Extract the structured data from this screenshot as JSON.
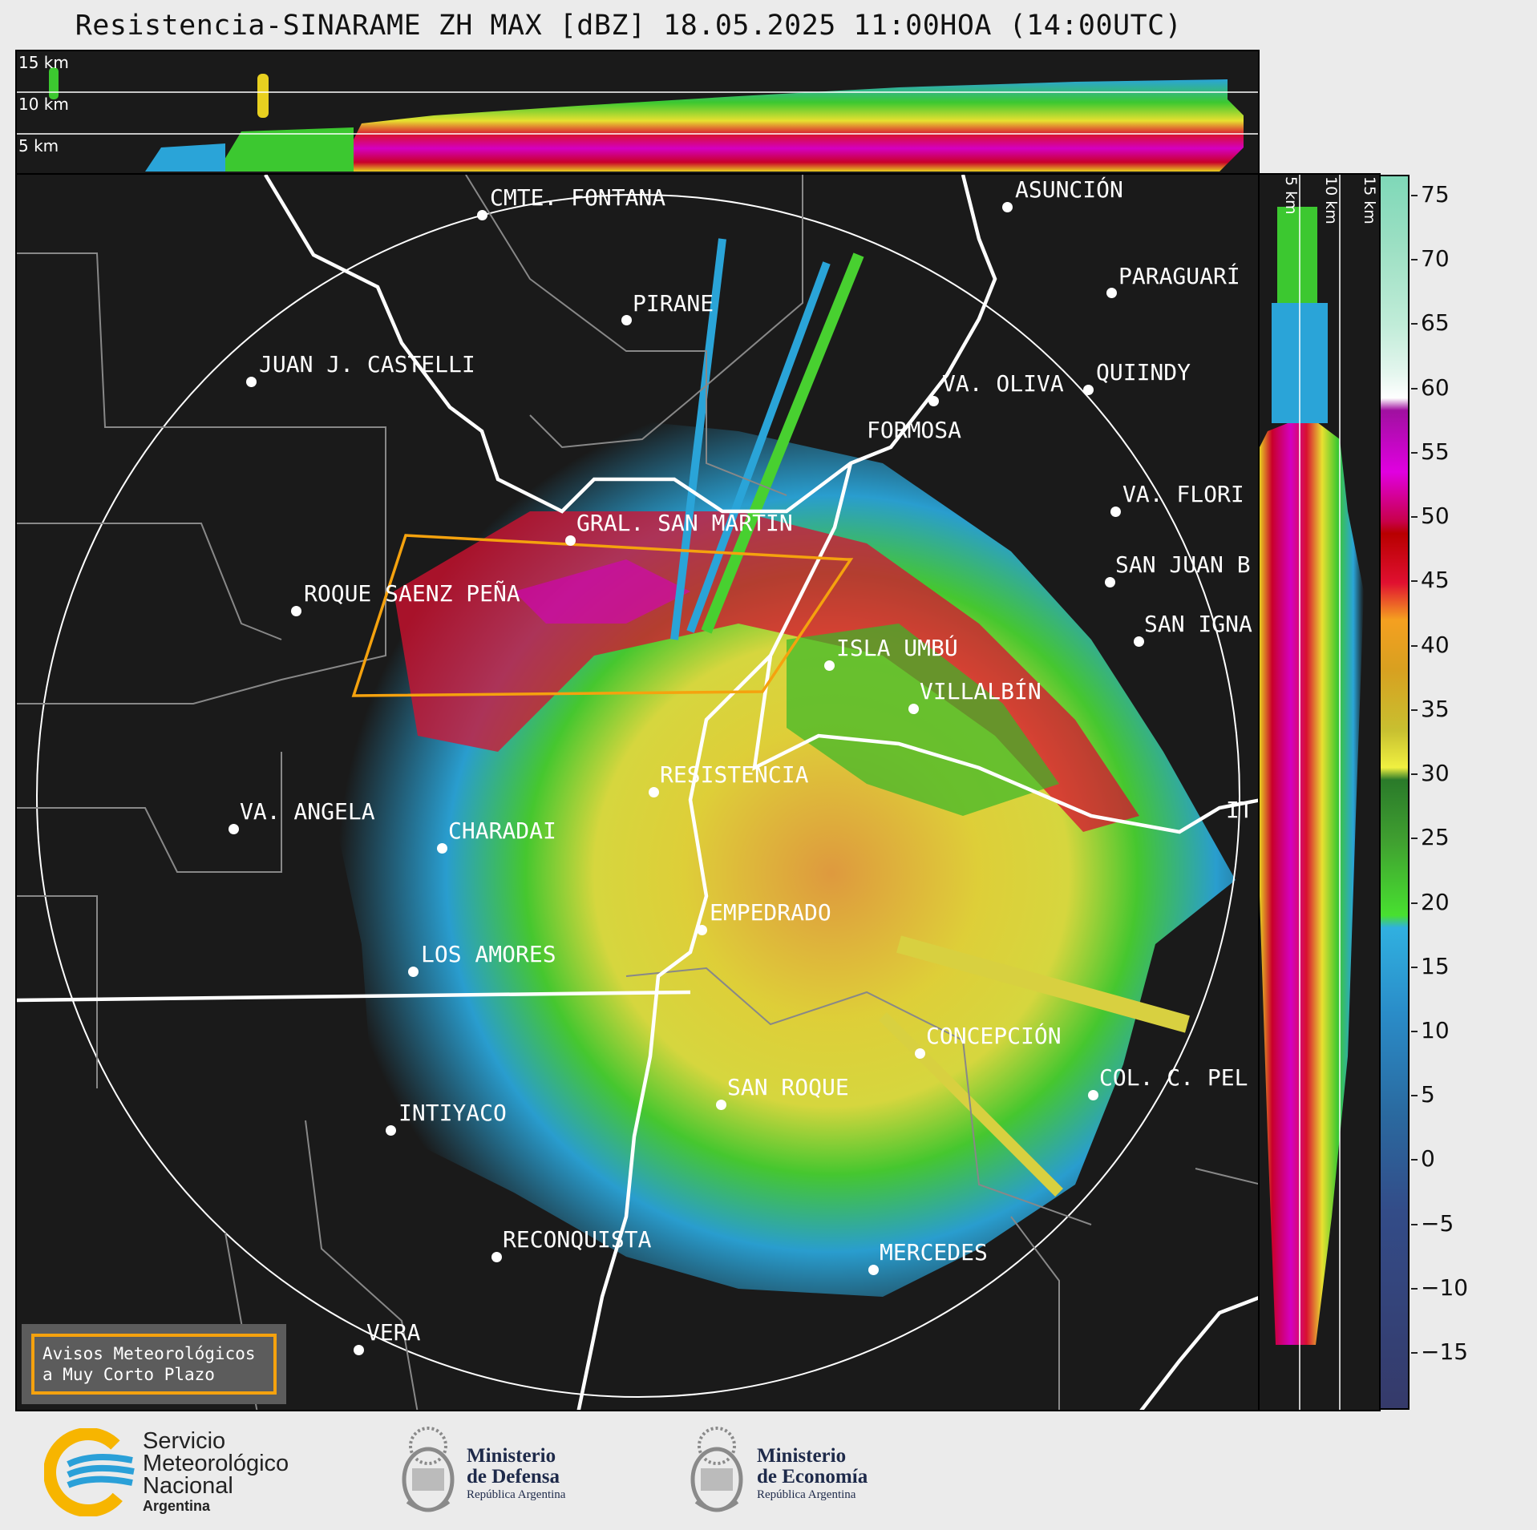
{
  "title": "Resistencia-SINARAME ZH MAX [dBZ] 18.05.2025 11:00HOA (14:00UTC)",
  "top_xsec": {
    "labels": [
      "15 km",
      "10 km",
      "5 km"
    ]
  },
  "side_xsec": {
    "labels": [
      "5 km",
      "10 km",
      "15 km"
    ]
  },
  "colorbar": {
    "ticks": [
      "75",
      "70",
      "65",
      "60",
      "55",
      "50",
      "45",
      "40",
      "35",
      "30",
      "25",
      "20",
      "15",
      "10",
      "5",
      "0",
      "−5",
      "−10",
      "−15"
    ]
  },
  "cities": [
    {
      "name": "CMTE. FONTANA"
    },
    {
      "name": "ASUNCIÓN"
    },
    {
      "name": "PARAGUARÍ"
    },
    {
      "name": "PIRANE"
    },
    {
      "name": "JUAN J. CASTELLI"
    },
    {
      "name": "VA. OLIVA"
    },
    {
      "name": "QUIINDY"
    },
    {
      "name": "FORMOSA"
    },
    {
      "name": "VA. FLORI"
    },
    {
      "name": "GRAL. SAN MARTÍN"
    },
    {
      "name": "SAN JUAN B"
    },
    {
      "name": "ROQUE SAENZ PEÑA"
    },
    {
      "name": "SAN IGNA"
    },
    {
      "name": "ISLA UMBÚ"
    },
    {
      "name": "VILLALBÍN"
    },
    {
      "name": "RESISTENCIA"
    },
    {
      "name": "VA. ANGELA"
    },
    {
      "name": "CHARADAI"
    },
    {
      "name": "IT"
    },
    {
      "name": "EMPEDRADO"
    },
    {
      "name": "LOS AMORES"
    },
    {
      "name": "CONCEPCIÓN"
    },
    {
      "name": "COL. C. PEL"
    },
    {
      "name": "SAN ROQUE"
    },
    {
      "name": "INTIYACO"
    },
    {
      "name": "RECONQUISTA"
    },
    {
      "name": "MERCEDES"
    },
    {
      "name": "VERA"
    }
  ],
  "avisos": {
    "line1": "Avisos Meteorológicos",
    "line2": "a Muy Corto Plazo"
  },
  "logos": {
    "smn": {
      "line1": "Servicio",
      "line2": "Meteorológico",
      "line3": "Nacional",
      "line4": "Argentina"
    },
    "defensa": {
      "line1": "Ministerio",
      "line2": "de Defensa",
      "line3": "República Argentina"
    },
    "economia": {
      "line1": "Ministerio",
      "line2": "de Economía",
      "line3": "República Argentina"
    }
  },
  "colors": {
    "accent_warning": "#f5a20e",
    "smn_yellow": "#f7b500",
    "smn_blue": "#2aa0d8"
  }
}
